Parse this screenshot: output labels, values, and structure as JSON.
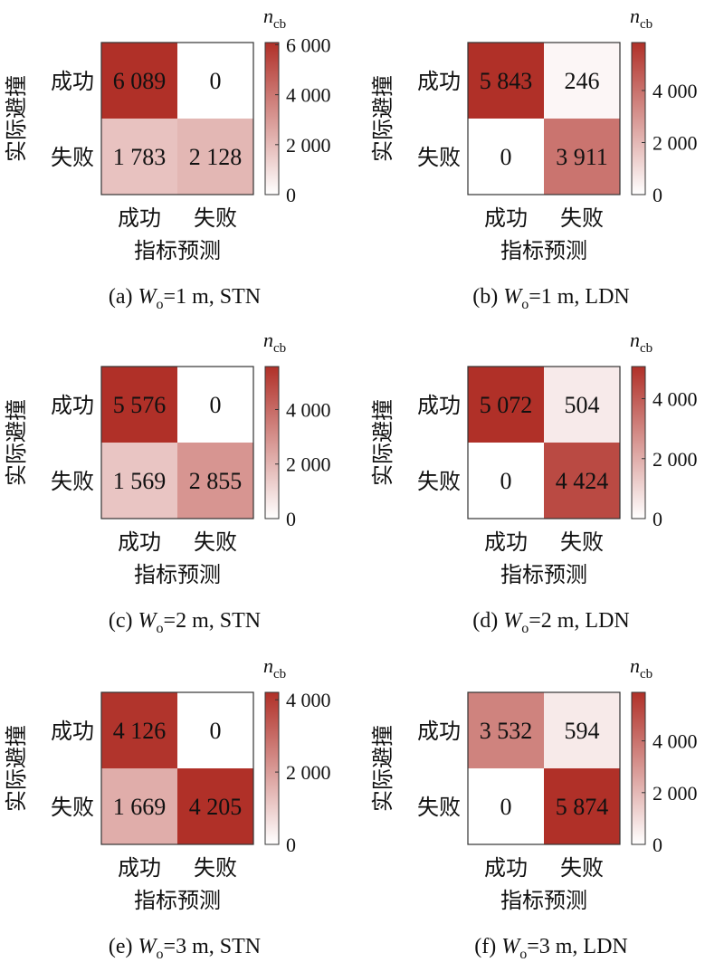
{
  "chart_data": [
    {
      "type": "heatmap",
      "caption_prefix": "(a) ",
      "caption_var": "W",
      "caption_sub": "o",
      "caption_rest": "=1 m, STN",
      "ylabel": "实际避撞",
      "xlabel": "指标预测",
      "row_labels": [
        "成功",
        "失败"
      ],
      "col_labels": [
        "成功",
        "失败"
      ],
      "values": [
        [
          6089,
          0
        ],
        [
          1783,
          2128
        ]
      ],
      "value_labels": [
        [
          "6 089",
          "0"
        ],
        [
          "1 783",
          "2 128"
        ]
      ],
      "colorbar_title": "n",
      "colorbar_title_sub": "cb",
      "colorbar_range": [
        0,
        6089
      ],
      "colorbar_ticks": [
        0,
        2000,
        4000,
        6000
      ],
      "colorbar_tick_labels": [
        "0",
        "2 000",
        "4 000",
        "6 000"
      ]
    },
    {
      "type": "heatmap",
      "caption_prefix": "(b) ",
      "caption_var": "W",
      "caption_sub": "o",
      "caption_rest": "=1 m, LDN",
      "ylabel": "实际避撞",
      "xlabel": "指标预测",
      "row_labels": [
        "成功",
        "失败"
      ],
      "col_labels": [
        "成功",
        "失败"
      ],
      "values": [
        [
          5843,
          246
        ],
        [
          0,
          3911
        ]
      ],
      "value_labels": [
        [
          "5 843",
          "246"
        ],
        [
          "0",
          "3 911"
        ]
      ],
      "colorbar_title": "n",
      "colorbar_title_sub": "cb",
      "colorbar_range": [
        0,
        5843
      ],
      "colorbar_ticks": [
        0,
        2000,
        4000
      ],
      "colorbar_tick_labels": [
        "0",
        "2 000",
        "4 000"
      ]
    },
    {
      "type": "heatmap",
      "caption_prefix": "(c) ",
      "caption_var": "W",
      "caption_sub": "o",
      "caption_rest": "=2 m, STN",
      "ylabel": "实际避撞",
      "xlabel": "指标预测",
      "row_labels": [
        "成功",
        "失败"
      ],
      "col_labels": [
        "成功",
        "失败"
      ],
      "values": [
        [
          5576,
          0
        ],
        [
          1569,
          2855
        ]
      ],
      "value_labels": [
        [
          "5 576",
          "0"
        ],
        [
          "1 569",
          "2 855"
        ]
      ],
      "colorbar_title": "n",
      "colorbar_title_sub": "cb",
      "colorbar_range": [
        0,
        5576
      ],
      "colorbar_ticks": [
        0,
        2000,
        4000
      ],
      "colorbar_tick_labels": [
        "0",
        "2 000",
        "4 000"
      ]
    },
    {
      "type": "heatmap",
      "caption_prefix": "(d) ",
      "caption_var": "W",
      "caption_sub": "o",
      "caption_rest": "=2 m, LDN",
      "ylabel": "实际避撞",
      "xlabel": "指标预测",
      "row_labels": [
        "成功",
        "失败"
      ],
      "col_labels": [
        "成功",
        "失败"
      ],
      "values": [
        [
          5072,
          504
        ],
        [
          0,
          4424
        ]
      ],
      "value_labels": [
        [
          "5 072",
          "504"
        ],
        [
          "0",
          "4 424"
        ]
      ],
      "colorbar_title": "n",
      "colorbar_title_sub": "cb",
      "colorbar_range": [
        0,
        5072
      ],
      "colorbar_ticks": [
        0,
        2000,
        4000
      ],
      "colorbar_tick_labels": [
        "0",
        "2 000",
        "4 000"
      ]
    },
    {
      "type": "heatmap",
      "caption_prefix": "(e) ",
      "caption_var": "W",
      "caption_sub": "o",
      "caption_rest": "=3 m, STN",
      "ylabel": "实际避撞",
      "xlabel": "指标预测",
      "row_labels": [
        "成功",
        "失败"
      ],
      "col_labels": [
        "成功",
        "失败"
      ],
      "values": [
        [
          4126,
          0
        ],
        [
          1669,
          4205
        ]
      ],
      "value_labels": [
        [
          "4 126",
          "0"
        ],
        [
          "1 669",
          "4 205"
        ]
      ],
      "colorbar_title": "n",
      "colorbar_title_sub": "cb",
      "colorbar_range": [
        0,
        4205
      ],
      "colorbar_ticks": [
        0,
        2000,
        4000
      ],
      "colorbar_tick_labels": [
        "0",
        "2 000",
        "4 000"
      ]
    },
    {
      "type": "heatmap",
      "caption_prefix": "(f) ",
      "caption_var": "W",
      "caption_sub": "o",
      "caption_rest": "=3 m, LDN",
      "ylabel": "实际避撞",
      "xlabel": "指标预测",
      "row_labels": [
        "成功",
        "失败"
      ],
      "col_labels": [
        "成功",
        "失败"
      ],
      "values": [
        [
          3532,
          594
        ],
        [
          0,
          5874
        ]
      ],
      "value_labels": [
        [
          "3 532",
          "594"
        ],
        [
          "0",
          "5 874"
        ]
      ],
      "colorbar_title": "n",
      "colorbar_title_sub": "cb",
      "colorbar_range": [
        0,
        5874
      ],
      "colorbar_ticks": [
        0,
        2000,
        4000
      ],
      "colorbar_tick_labels": [
        "0",
        "2 000",
        "4 000"
      ]
    }
  ],
  "colors": {
    "low": "#ffffff",
    "high": "#b03028",
    "frame": "#333333",
    "text": "#111111"
  }
}
